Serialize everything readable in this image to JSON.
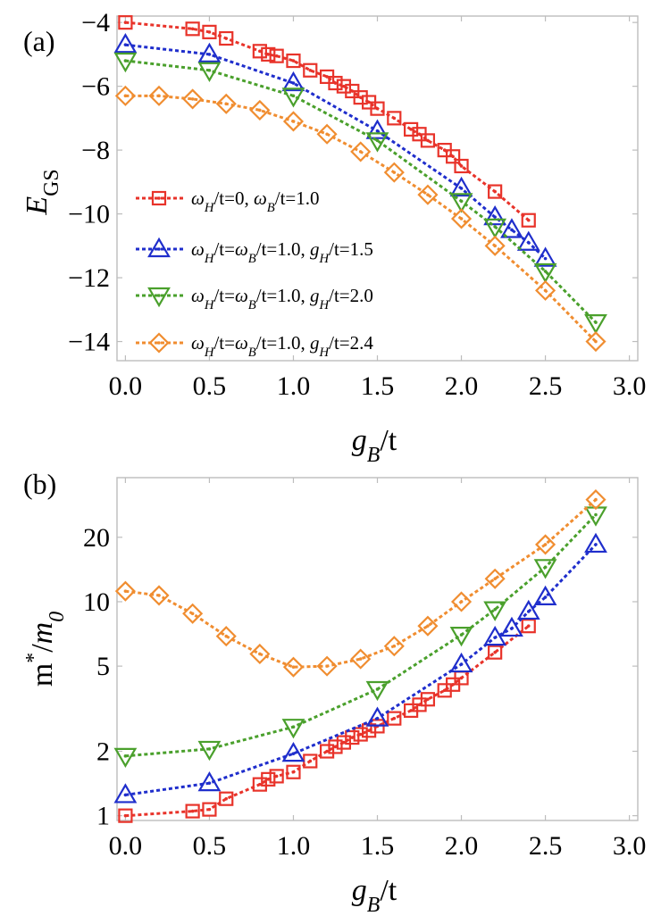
{
  "chart_data": [
    {
      "type": "line",
      "panel_label": "(a)",
      "xlabel": "g_B/t",
      "ylabel": "E_GS",
      "xlim": [
        -0.05,
        3.05
      ],
      "ylim": [
        -14.6,
        -3.8
      ],
      "xticks": [
        "0.0",
        "0.5",
        "1.0",
        "1.5",
        "2.0",
        "2.5",
        "3.0"
      ],
      "yticks": [
        "−4",
        "−6",
        "−8",
        "−10",
        "−12",
        "−14"
      ],
      "ytick_values": [
        -4,
        -6,
        -8,
        -10,
        -12,
        -14
      ],
      "legend_position": "bottom-left",
      "series": [
        {
          "name": "ω_H/t=0, ω_B/t=1.0",
          "color": "#e8332a",
          "marker": "square",
          "x": [
            0.0,
            0.4,
            0.5,
            0.6,
            0.8,
            0.85,
            0.9,
            1.0,
            1.1,
            1.2,
            1.25,
            1.3,
            1.35,
            1.4,
            1.45,
            1.5,
            1.6,
            1.7,
            1.75,
            1.8,
            1.9,
            1.95,
            2.0,
            2.2,
            2.4
          ],
          "y": [
            -4.0,
            -4.2,
            -4.3,
            -4.5,
            -4.9,
            -5.0,
            -5.05,
            -5.2,
            -5.5,
            -5.7,
            -5.9,
            -6.0,
            -6.15,
            -6.35,
            -6.5,
            -6.7,
            -7.0,
            -7.35,
            -7.5,
            -7.7,
            -8.0,
            -8.2,
            -8.5,
            -9.3,
            -10.2
          ]
        },
        {
          "name": "ω_H/t=ω_B/t=1.0, g_H/t=1.5",
          "color": "#1f2ecc",
          "marker": "triangle-up",
          "x": [
            0.0,
            0.5,
            1.0,
            1.5,
            2.0,
            2.2,
            2.3,
            2.4,
            2.5
          ],
          "y": [
            -4.7,
            -5.0,
            -5.9,
            -7.4,
            -9.2,
            -10.1,
            -10.5,
            -10.9,
            -11.4
          ]
        },
        {
          "name": "ω_H/t=ω_B/t=1.0, g_H/t=2.0",
          "color": "#4aa02c",
          "marker": "triangle-down",
          "x": [
            0.0,
            0.5,
            1.0,
            1.5,
            2.0,
            2.2,
            2.5,
            2.8
          ],
          "y": [
            -5.2,
            -5.5,
            -6.3,
            -7.7,
            -9.6,
            -10.4,
            -11.8,
            -13.4
          ]
        },
        {
          "name": "ω_H/t=ω_B/t=1.0, g_H/t=2.4",
          "color": "#f08d30",
          "marker": "diamond",
          "x": [
            0.0,
            0.2,
            0.4,
            0.6,
            0.8,
            1.0,
            1.2,
            1.4,
            1.6,
            1.8,
            2.0,
            2.2,
            2.5,
            2.8
          ],
          "y": [
            -6.3,
            -6.3,
            -6.4,
            -6.55,
            -6.75,
            -7.1,
            -7.5,
            -8.05,
            -8.7,
            -9.4,
            -10.15,
            -11.0,
            -12.4,
            -14.0
          ]
        }
      ]
    },
    {
      "type": "line",
      "panel_label": "(b)",
      "xlabel": "g_B/t",
      "ylabel": "m*/m_0",
      "yscale": "log",
      "xlim": [
        -0.05,
        3.05
      ],
      "ylim": [
        0.95,
        38
      ],
      "xticks": [
        "0.0",
        "0.5",
        "1.0",
        "1.5",
        "2.0",
        "2.5",
        "3.0"
      ],
      "yticks": [
        "1",
        "2",
        "5",
        "10",
        "20"
      ],
      "ytick_values": [
        1,
        2,
        5,
        10,
        20
      ],
      "series": [
        {
          "name": "ω_H/t=0, ω_B/t=1.0",
          "color": "#e8332a",
          "marker": "square",
          "x": [
            0.0,
            0.4,
            0.5,
            0.6,
            0.8,
            0.85,
            0.9,
            1.0,
            1.1,
            1.2,
            1.25,
            1.3,
            1.35,
            1.4,
            1.45,
            1.5,
            1.6,
            1.7,
            1.75,
            1.8,
            1.9,
            1.95,
            2.0,
            2.2,
            2.4
          ],
          "y": [
            1.0,
            1.05,
            1.07,
            1.2,
            1.4,
            1.48,
            1.53,
            1.6,
            1.8,
            2.0,
            2.1,
            2.2,
            2.32,
            2.4,
            2.5,
            2.62,
            2.85,
            3.1,
            3.3,
            3.5,
            3.85,
            4.1,
            4.4,
            5.8,
            7.7
          ]
        },
        {
          "name": "ω_H/t=ω_B/t=1.0, g_H/t=1.5",
          "color": "#1f2ecc",
          "marker": "triangle-up",
          "x": [
            0.0,
            0.5,
            1.0,
            1.5,
            2.0,
            2.2,
            2.3,
            2.4,
            2.5,
            2.8
          ],
          "y": [
            1.25,
            1.42,
            1.95,
            2.85,
            5.1,
            6.8,
            7.5,
            9.0,
            10.5,
            18.5
          ]
        },
        {
          "name": "ω_H/t=ω_B/t=1.0, g_H/t=2.0",
          "color": "#4aa02c",
          "marker": "triangle-down",
          "x": [
            0.0,
            0.5,
            1.0,
            1.5,
            2.0,
            2.2,
            2.5,
            2.8
          ],
          "y": [
            1.9,
            2.05,
            2.6,
            3.9,
            7.0,
            9.2,
            14.5,
            25.5
          ]
        },
        {
          "name": "ω_H/t=ω_B/t=1.0, g_H/t=2.4",
          "color": "#f08d30",
          "marker": "diamond",
          "x": [
            0.0,
            0.2,
            0.4,
            0.6,
            0.8,
            1.0,
            1.2,
            1.4,
            1.6,
            1.8,
            2.0,
            2.2,
            2.5,
            2.8
          ],
          "y": [
            11.2,
            10.7,
            8.8,
            6.9,
            5.7,
            4.95,
            5.0,
            5.4,
            6.2,
            7.7,
            10.0,
            12.8,
            18.5,
            30.0
          ]
        }
      ]
    }
  ]
}
